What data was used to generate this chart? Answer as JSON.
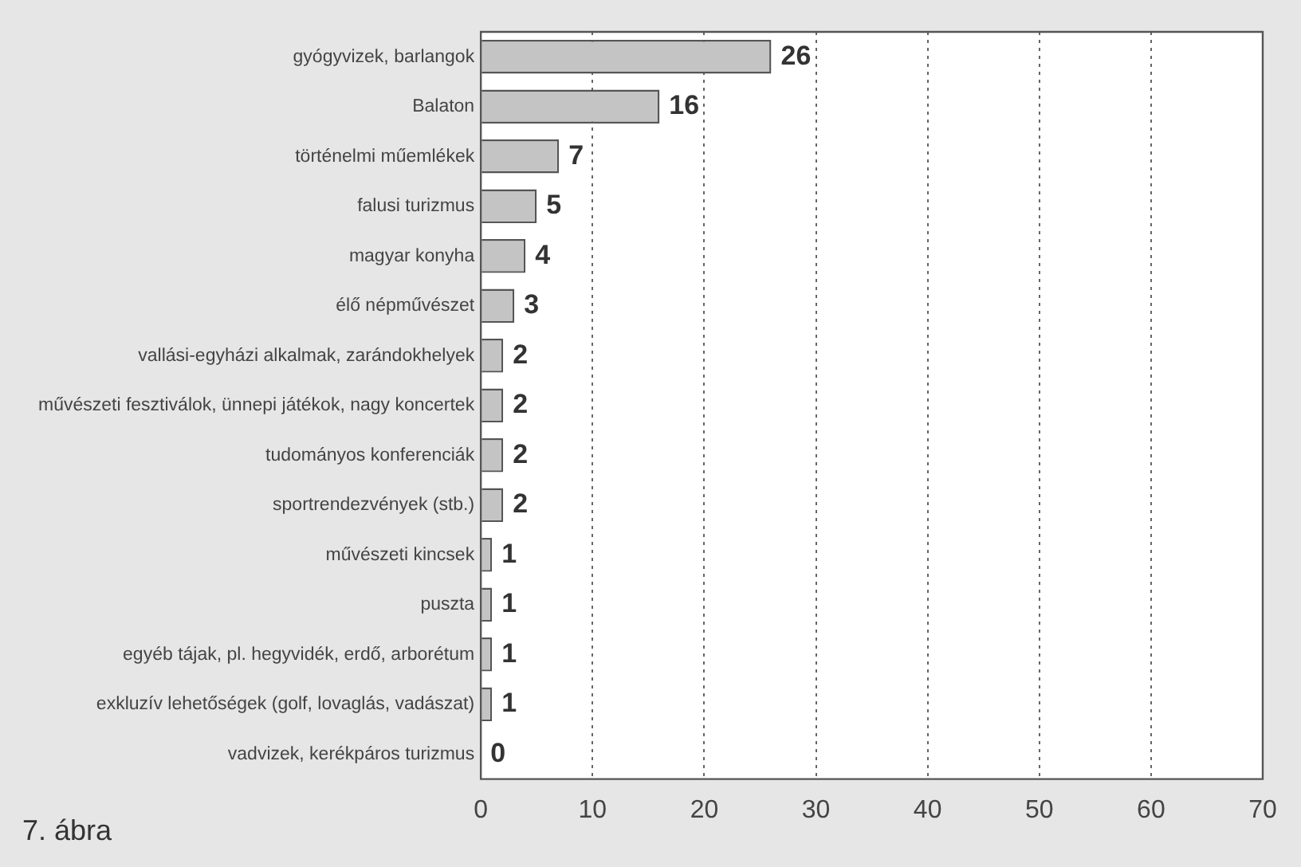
{
  "chart_data": {
    "type": "bar",
    "orientation": "horizontal",
    "categories": [
      "gyógyvizek, barlangok",
      "Balaton",
      "történelmi műemlékek",
      "falusi turizmus",
      "magyar konyha",
      "élő népművészet",
      "vallási-egyházi alkalmak, zarándokhelyek",
      "művészeti fesztiválok, ünnepi játékok, nagy koncertek",
      "tudományos konferenciák",
      "sportrendezvények (stb.)",
      "művészeti kincsek",
      "puszta",
      "egyéb tájak, pl. hegyvidék, erdő, arborétum",
      "exkluzív lehetőségek (golf, lovaglás, vadászat)",
      "vadvizek, kerékpáros turizmus"
    ],
    "values": [
      26,
      16,
      7,
      5,
      4,
      3,
      2,
      2,
      2,
      2,
      1,
      1,
      1,
      1,
      0
    ],
    "color": "#c4c4c4",
    "xlim": [
      0,
      70
    ],
    "xticks": [
      0,
      10,
      20,
      30,
      40,
      50,
      60,
      70
    ],
    "grid": "x",
    "data_labels": true,
    "annotations": [
      "7. ábra"
    ]
  }
}
